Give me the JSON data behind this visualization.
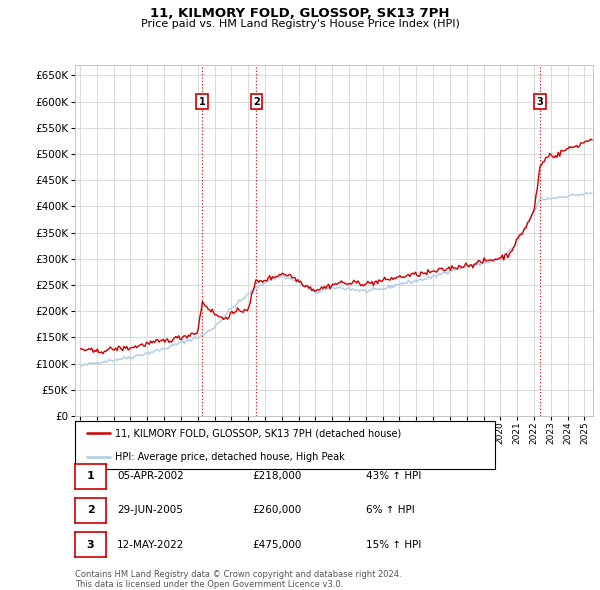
{
  "title": "11, KILMORY FOLD, GLOSSOP, SK13 7PH",
  "subtitle": "Price paid vs. HM Land Registry's House Price Index (HPI)",
  "ylim": [
    0,
    670000
  ],
  "yticks": [
    0,
    50000,
    100000,
    150000,
    200000,
    250000,
    300000,
    350000,
    400000,
    450000,
    500000,
    550000,
    600000,
    650000
  ],
  "xlim_start": 1994.7,
  "xlim_end": 2025.5,
  "hpi_color": "#aecce8",
  "price_color": "#cc0000",
  "vline_color": "#cc0000",
  "transactions": [
    {
      "label": "1",
      "date_num": 2002.27,
      "price": 218000,
      "display": "05-APR-2002",
      "amount": "£218,000",
      "change": "43% ↑ HPI"
    },
    {
      "label": "2",
      "date_num": 2005.49,
      "price": 260000,
      "display": "29-JUN-2005",
      "amount": "£260,000",
      "change": "6% ↑ HPI"
    },
    {
      "label": "3",
      "date_num": 2022.36,
      "price": 475000,
      "display": "12-MAY-2022",
      "amount": "£475,000",
      "change": "15% ↑ HPI"
    }
  ],
  "legend_line1": "11, KILMORY FOLD, GLOSSOP, SK13 7PH (detached house)",
  "legend_line2": "HPI: Average price, detached house, High Peak",
  "footer1": "Contains HM Land Registry data © Crown copyright and database right 2024.",
  "footer2": "This data is licensed under the Open Government Licence v3.0.",
  "label_box_color": "#cc0000",
  "background_color": "#ffffff",
  "grid_color": "#cccccc",
  "hpi_anchors": {
    "1995.0": 95000,
    "1996.0": 102000,
    "1997.0": 107000,
    "1998.0": 112000,
    "1999.0": 120000,
    "2000.0": 128000,
    "2001.0": 140000,
    "2002.27": 153000,
    "2003.0": 170000,
    "2004.0": 205000,
    "2005.49": 245000,
    "2006.0": 255000,
    "2007.0": 268000,
    "2008.0": 255000,
    "2009.0": 235000,
    "2010.0": 245000,
    "2011.0": 243000,
    "2012.0": 238000,
    "2013.0": 242000,
    "2014.0": 252000,
    "2015.0": 258000,
    "2016.0": 265000,
    "2017.0": 278000,
    "2018.0": 285000,
    "2019.0": 292000,
    "2020.0": 298000,
    "2021.0": 330000,
    "2022.36": 413000,
    "2023.0": 415000,
    "2024.0": 420000,
    "2025.5": 425000
  },
  "price_anchors": {
    "1995.0": 128000,
    "1996.0": 122000,
    "1997.0": 128000,
    "1998.0": 130000,
    "1999.0": 138000,
    "2000.0": 143000,
    "2001.0": 150000,
    "2002.0": 160000,
    "2002.27": 218000,
    "2002.5": 210000,
    "2003.0": 195000,
    "2003.5": 185000,
    "2004.0": 195000,
    "2004.5": 200000,
    "2005.0": 205000,
    "2005.49": 260000,
    "2005.7": 255000,
    "2006.0": 260000,
    "2006.5": 265000,
    "2007.0": 272000,
    "2007.5": 268000,
    "2008.0": 258000,
    "2008.5": 248000,
    "2009.0": 240000,
    "2009.5": 245000,
    "2010.0": 250000,
    "2010.5": 255000,
    "2011.0": 252000,
    "2011.5": 255000,
    "2012.0": 252000,
    "2012.5": 255000,
    "2013.0": 258000,
    "2013.5": 262000,
    "2014.0": 265000,
    "2014.5": 268000,
    "2015.0": 270000,
    "2015.5": 272000,
    "2016.0": 275000,
    "2016.5": 278000,
    "2017.0": 282000,
    "2017.5": 285000,
    "2018.0": 288000,
    "2018.5": 290000,
    "2019.0": 295000,
    "2019.5": 298000,
    "2020.0": 302000,
    "2020.5": 308000,
    "2021.0": 335000,
    "2021.5": 360000,
    "2022.0": 390000,
    "2022.36": 475000,
    "2022.6": 488000,
    "2023.0": 500000,
    "2023.3": 495000,
    "2023.7": 505000,
    "2024.0": 510000,
    "2024.5": 515000,
    "2025.5": 530000
  }
}
